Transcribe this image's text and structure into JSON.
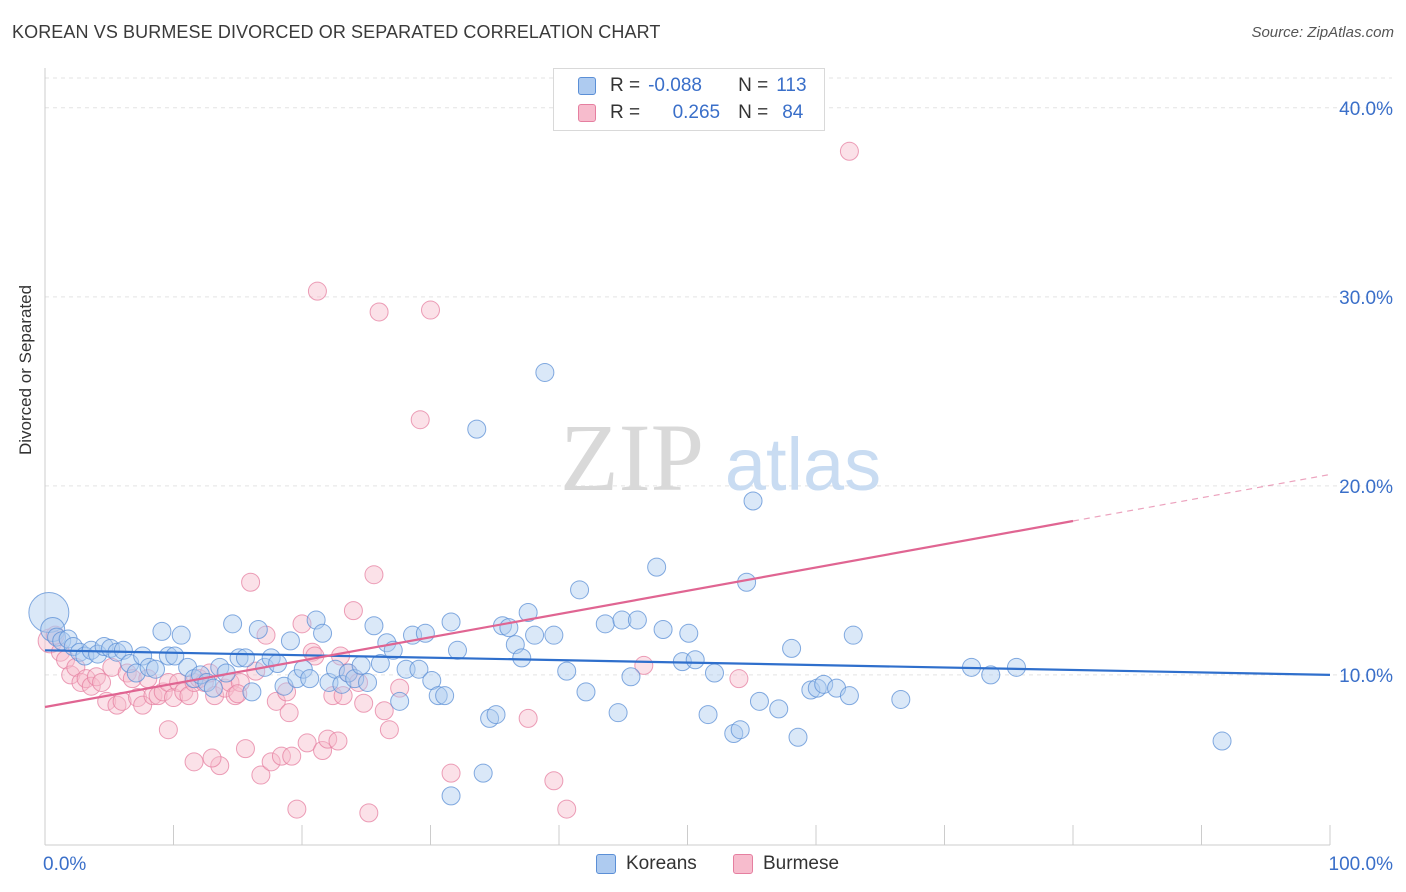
{
  "title": "KOREAN VS BURMESE DIVORCED OR SEPARATED CORRELATION CHART",
  "source": "Source: ZipAtlas.com",
  "watermark": {
    "zip": "ZIP",
    "atlas": "atlas"
  },
  "legend_top": {
    "korean": {
      "r_label": "R =",
      "r_value": "-0.088",
      "n_label": "N =",
      "n_value": "113"
    },
    "burmese": {
      "r_label": "R =",
      "r_value": "0.265",
      "n_label": "N =",
      "n_value": "84"
    }
  },
  "legend_bottom": {
    "korean": "Koreans",
    "burmese": "Burmese"
  },
  "colors": {
    "korean_fill": "#aecbf0",
    "korean_stroke": "#5b8fd6",
    "korean_line": "#2f6fcc",
    "burmese_fill": "#f7bccd",
    "burmese_stroke": "#e57fa0",
    "burmese_line": "#e06592",
    "axis_text": "#3a6fc9"
  },
  "chart_data": {
    "type": "scatter",
    "title": "KOREAN VS BURMESE DIVORCED OR SEPARATED CORRELATION CHART",
    "xlabel": "",
    "ylabel": "Divorced or Separated",
    "xlim": [
      0,
      100
    ],
    "ylim": [
      1.0,
      42.0
    ],
    "x_tick_labels": [
      "0.0%",
      "100.0%"
    ],
    "y_ticks": [
      10,
      20,
      30,
      40
    ],
    "y_tick_labels": [
      "10.0%",
      "20.0%",
      "30.0%",
      "40.0%"
    ],
    "grid": "horizontal dashed",
    "legend_position": "top-center",
    "series": [
      {
        "name": "Koreans",
        "r": -0.088,
        "n": 113,
        "trend": {
          "x": [
            0,
            100
          ],
          "y": [
            11.3,
            10.0
          ],
          "dashed_from": null
        },
        "points": [
          [
            0.3,
            13.3,
            "L"
          ],
          [
            0.6,
            12.4,
            "M"
          ],
          [
            0.9,
            12.0
          ],
          [
            1.3,
            11.8
          ],
          [
            1.8,
            11.9
          ],
          [
            2.2,
            11.5
          ],
          [
            2.7,
            11.2
          ],
          [
            3.1,
            11.0
          ],
          [
            3.6,
            11.3
          ],
          [
            4.1,
            11.1
          ],
          [
            4.6,
            11.5
          ],
          [
            5.1,
            11.4
          ],
          [
            5.6,
            11.2
          ],
          [
            6.1,
            11.3
          ],
          [
            6.6,
            10.6
          ],
          [
            7.1,
            10.1
          ],
          [
            7.6,
            11.0
          ],
          [
            8.1,
            10.4
          ],
          [
            8.6,
            10.3
          ],
          [
            9.1,
            12.3
          ],
          [
            9.6,
            11.0
          ],
          [
            10.1,
            11.0
          ],
          [
            10.6,
            12.1
          ],
          [
            11.1,
            10.4
          ],
          [
            11.6,
            9.8
          ],
          [
            12.1,
            10.0
          ],
          [
            12.6,
            9.6
          ],
          [
            13.1,
            9.3
          ],
          [
            13.6,
            10.4
          ],
          [
            14.1,
            10.1
          ],
          [
            14.6,
            12.7
          ],
          [
            15.1,
            10.9
          ],
          [
            15.6,
            10.9
          ],
          [
            16.1,
            9.1
          ],
          [
            16.6,
            12.4
          ],
          [
            17.1,
            10.4
          ],
          [
            17.6,
            10.9
          ],
          [
            18.1,
            10.6
          ],
          [
            18.6,
            9.4
          ],
          [
            19.1,
            11.8
          ],
          [
            19.6,
            9.8
          ],
          [
            20.1,
            10.3
          ],
          [
            20.6,
            9.8
          ],
          [
            21.1,
            12.9
          ],
          [
            21.6,
            12.2
          ],
          [
            22.1,
            9.6
          ],
          [
            22.6,
            10.3
          ],
          [
            23.1,
            9.5
          ],
          [
            23.6,
            10.1
          ],
          [
            24.1,
            9.8
          ],
          [
            24.6,
            10.5
          ],
          [
            25.1,
            9.6
          ],
          [
            25.6,
            12.6
          ],
          [
            26.1,
            10.6
          ],
          [
            26.6,
            11.7
          ],
          [
            27.1,
            11.3
          ],
          [
            27.6,
            8.6
          ],
          [
            28.1,
            10.3
          ],
          [
            28.6,
            12.1
          ],
          [
            29.1,
            10.3
          ],
          [
            29.6,
            12.2
          ],
          [
            30.1,
            9.7
          ],
          [
            30.6,
            8.9
          ],
          [
            31.1,
            8.9
          ],
          [
            31.6,
            12.8
          ],
          [
            32.1,
            11.3
          ],
          [
            33.6,
            23.0
          ],
          [
            34.1,
            4.8
          ],
          [
            34.6,
            7.7
          ],
          [
            35.1,
            7.9
          ],
          [
            35.6,
            12.6
          ],
          [
            36.1,
            12.5
          ],
          [
            36.6,
            11.6
          ],
          [
            37.1,
            10.9
          ],
          [
            37.6,
            13.3
          ],
          [
            38.1,
            12.1
          ],
          [
            38.9,
            26.0
          ],
          [
            39.6,
            12.1
          ],
          [
            40.6,
            10.2
          ],
          [
            41.6,
            14.5
          ],
          [
            42.1,
            9.1
          ],
          [
            43.6,
            12.7
          ],
          [
            44.6,
            8.0
          ],
          [
            44.9,
            12.9
          ],
          [
            45.6,
            9.9
          ],
          [
            46.1,
            12.9
          ],
          [
            47.6,
            15.7
          ],
          [
            48.1,
            12.4
          ],
          [
            49.6,
            10.7
          ],
          [
            50.1,
            12.2
          ],
          [
            50.6,
            10.8
          ],
          [
            51.6,
            7.9
          ],
          [
            52.1,
            10.1
          ],
          [
            53.6,
            6.9
          ],
          [
            54.1,
            7.1
          ],
          [
            54.6,
            14.9
          ],
          [
            55.1,
            19.2
          ],
          [
            55.6,
            8.6
          ],
          [
            57.1,
            8.2
          ],
          [
            58.1,
            11.4
          ],
          [
            58.6,
            6.7
          ],
          [
            59.6,
            9.2
          ],
          [
            60.1,
            9.3
          ],
          [
            60.6,
            9.5
          ],
          [
            61.6,
            9.3
          ],
          [
            62.6,
            8.9
          ],
          [
            62.9,
            12.1
          ],
          [
            66.6,
            8.7
          ],
          [
            72.1,
            10.4
          ],
          [
            73.6,
            10.0
          ],
          [
            75.6,
            10.4
          ],
          [
            91.6,
            6.5
          ],
          [
            31.6,
            3.6
          ]
        ]
      },
      {
        "name": "Burmese",
        "r": 0.265,
        "n": 84,
        "trend": {
          "x": [
            0,
            100
          ],
          "y": [
            8.3,
            20.6
          ],
          "dashed_from": 80
        },
        "points": [
          [
            0.4,
            11.8,
            "M"
          ],
          [
            0.8,
            12.1
          ],
          [
            1.2,
            11.2
          ],
          [
            1.6,
            10.8
          ],
          [
            2.0,
            10.0
          ],
          [
            2.4,
            10.4
          ],
          [
            2.8,
            9.6
          ],
          [
            3.2,
            9.8
          ],
          [
            3.6,
            9.4
          ],
          [
            4.0,
            9.9
          ],
          [
            4.4,
            9.6
          ],
          [
            4.8,
            8.6
          ],
          [
            5.2,
            10.4
          ],
          [
            5.6,
            8.4
          ],
          [
            6.0,
            8.6
          ],
          [
            6.4,
            10.1
          ],
          [
            6.8,
            9.8
          ],
          [
            7.2,
            8.8
          ],
          [
            7.6,
            8.4
          ],
          [
            8.0,
            9.8
          ],
          [
            8.4,
            8.9
          ],
          [
            8.8,
            8.9
          ],
          [
            9.2,
            9.1
          ],
          [
            9.6,
            9.6
          ],
          [
            10.0,
            8.8
          ],
          [
            10.4,
            9.6
          ],
          [
            10.8,
            9.1
          ],
          [
            11.2,
            8.9
          ],
          [
            11.6,
            9.6
          ],
          [
            12.0,
            9.8
          ],
          [
            12.4,
            9.6
          ],
          [
            12.8,
            10.1
          ],
          [
            13.2,
            8.9
          ],
          [
            13.6,
            5.2
          ],
          [
            14.0,
            9.3
          ],
          [
            14.4,
            9.6
          ],
          [
            14.8,
            8.9
          ],
          [
            15.2,
            9.6
          ],
          [
            15.6,
            6.1
          ],
          [
            16.0,
            14.9
          ],
          [
            16.4,
            10.2
          ],
          [
            16.8,
            4.7
          ],
          [
            17.2,
            12.1
          ],
          [
            17.6,
            5.4
          ],
          [
            18.0,
            8.6
          ],
          [
            18.4,
            5.7
          ],
          [
            18.8,
            9.1
          ],
          [
            19.2,
            5.7
          ],
          [
            19.6,
            2.9
          ],
          [
            20.0,
            12.7
          ],
          [
            20.4,
            6.4
          ],
          [
            20.8,
            11.2
          ],
          [
            21.2,
            30.3
          ],
          [
            21.6,
            6.0
          ],
          [
            22.0,
            6.6
          ],
          [
            22.4,
            8.9
          ],
          [
            22.8,
            6.5
          ],
          [
            23.2,
            8.9
          ],
          [
            23.6,
            10.1
          ],
          [
            24.0,
            13.4
          ],
          [
            24.4,
            9.6
          ],
          [
            24.8,
            8.5
          ],
          [
            25.2,
            2.7
          ],
          [
            25.6,
            15.3
          ],
          [
            26.0,
            29.2
          ],
          [
            26.4,
            8.1
          ],
          [
            26.8,
            7.1
          ],
          [
            27.6,
            9.3
          ],
          [
            29.2,
            23.5
          ],
          [
            30.0,
            29.3
          ],
          [
            31.6,
            4.8
          ],
          [
            37.6,
            7.7
          ],
          [
            39.6,
            4.4
          ],
          [
            40.6,
            2.9
          ],
          [
            46.6,
            10.5
          ],
          [
            54.0,
            9.8
          ],
          [
            62.6,
            37.7
          ],
          [
            9.6,
            7.1
          ],
          [
            11.6,
            5.4
          ],
          [
            13.0,
            5.6
          ],
          [
            15.0,
            9.0
          ],
          [
            19.0,
            8.0
          ],
          [
            21.0,
            11.0
          ],
          [
            23.0,
            11.0
          ]
        ]
      }
    ]
  }
}
